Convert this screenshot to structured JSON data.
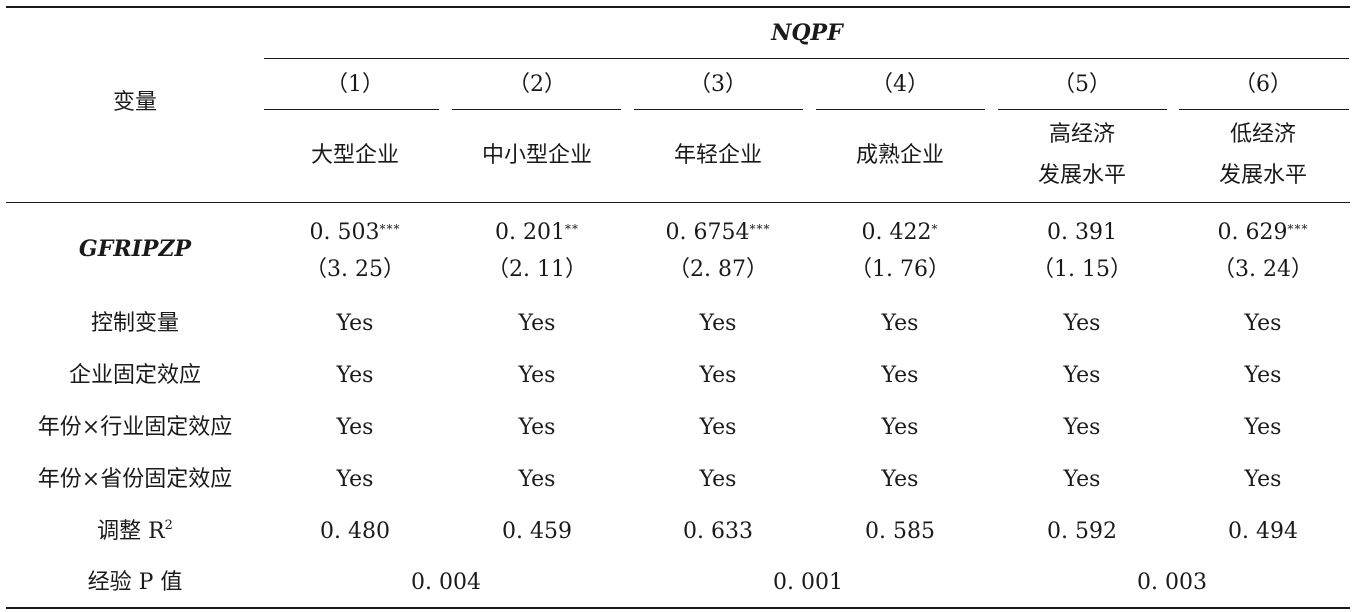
{
  "table": {
    "stub_header": "变量",
    "dependent_var": "NQPF",
    "columns": [
      {
        "num": "（1）",
        "label_lines": [
          "大型企业"
        ]
      },
      {
        "num": "（2）",
        "label_lines": [
          "中小型企业"
        ]
      },
      {
        "num": "（3）",
        "label_lines": [
          "年轻企业"
        ]
      },
      {
        "num": "（4）",
        "label_lines": [
          "成熟企业"
        ]
      },
      {
        "num": "（5）",
        "label_lines": [
          "高经济",
          "发展水平"
        ]
      },
      {
        "num": "（6）",
        "label_lines": [
          "低经济",
          "发展水平"
        ]
      }
    ],
    "coef_row": {
      "name": "GFRIPZP",
      "coefs": [
        {
          "value": "0. 503",
          "stars": "***"
        },
        {
          "value": "0. 201",
          "stars": "**"
        },
        {
          "value": "0. 6754",
          "stars": "***"
        },
        {
          "value": "0. 422",
          "stars": "*"
        },
        {
          "value": "0. 391",
          "stars": ""
        },
        {
          "value": "0. 629",
          "stars": "***"
        }
      ],
      "tstats": [
        "（3. 25）",
        "（2. 11）",
        "（2. 87）",
        "（1. 76）",
        "（1. 15）",
        "（3. 24）"
      ]
    },
    "yes_rows": [
      {
        "name": "控制变量",
        "values": [
          "Yes",
          "Yes",
          "Yes",
          "Yes",
          "Yes",
          "Yes"
        ]
      },
      {
        "name": "企业固定效应",
        "values": [
          "Yes",
          "Yes",
          "Yes",
          "Yes",
          "Yes",
          "Yes"
        ]
      },
      {
        "name": "年份×行业固定效应",
        "values": [
          "Yes",
          "Yes",
          "Yes",
          "Yes",
          "Yes",
          "Yes"
        ]
      },
      {
        "name": "年份×省份固定效应",
        "values": [
          "Yes",
          "Yes",
          "Yes",
          "Yes",
          "Yes",
          "Yes"
        ]
      }
    ],
    "r2_row": {
      "name": "调整 R",
      "sup": "2",
      "values": [
        "0. 480",
        "0. 459",
        "0. 633",
        "0. 585",
        "0. 592",
        "0. 494"
      ]
    },
    "p_row": {
      "name": "经验 P 值",
      "values": [
        "0. 004",
        "0. 001",
        "0. 003"
      ]
    }
  }
}
